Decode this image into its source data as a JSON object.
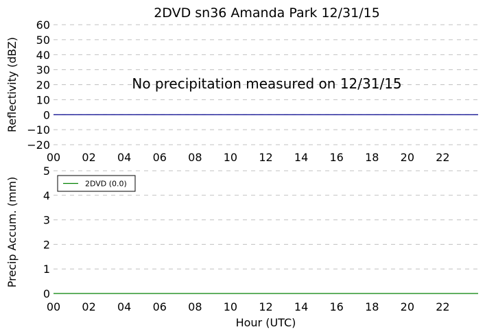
{
  "chart_data": [
    {
      "type": "line",
      "title": "2DVD sn36 Amanda Park 12/31/15",
      "ylabel": "Reflectivity (dBZ)",
      "xlabel": "",
      "ylim": [
        -20,
        60
      ],
      "xlim": [
        0,
        24
      ],
      "yticks": [
        60,
        50,
        40,
        30,
        20,
        10,
        0,
        -10,
        -20
      ],
      "ytick_labels": [
        "60",
        "50",
        "40",
        "30",
        "20",
        "10",
        "0",
        "−10",
        "−20"
      ],
      "xticks": [
        0,
        2,
        4,
        6,
        8,
        10,
        12,
        14,
        16,
        18,
        20,
        22
      ],
      "xtick_labels": [
        "00",
        "02",
        "04",
        "06",
        "08",
        "10",
        "12",
        "14",
        "16",
        "18",
        "20",
        "22"
      ],
      "grid": "horizontal dashed",
      "annotation": "No precipitation measured on 12/31/15",
      "series": [
        {
          "color": "#00008b",
          "x": [
            0,
            24
          ],
          "y": [
            0,
            0
          ]
        }
      ]
    },
    {
      "type": "line",
      "title": "",
      "ylabel": "Precip Accum. (mm)",
      "xlabel": "Hour (UTC)",
      "ylim": [
        0,
        5
      ],
      "xlim": [
        0,
        24
      ],
      "yticks": [
        5,
        4,
        3,
        2,
        1,
        0
      ],
      "ytick_labels": [
        "5",
        "4",
        "3",
        "2",
        "1",
        "0"
      ],
      "xticks": [
        0,
        2,
        4,
        6,
        8,
        10,
        12,
        14,
        16,
        18,
        20,
        22
      ],
      "xtick_labels": [
        "00",
        "02",
        "04",
        "06",
        "08",
        "10",
        "12",
        "14",
        "16",
        "18",
        "20",
        "22"
      ],
      "grid": "horizontal dashed",
      "legend_position": "upper-left",
      "series": [
        {
          "name": "2DVD (0.0)",
          "color": "#008000",
          "x": [
            0,
            24
          ],
          "y": [
            0,
            0
          ]
        }
      ]
    }
  ]
}
